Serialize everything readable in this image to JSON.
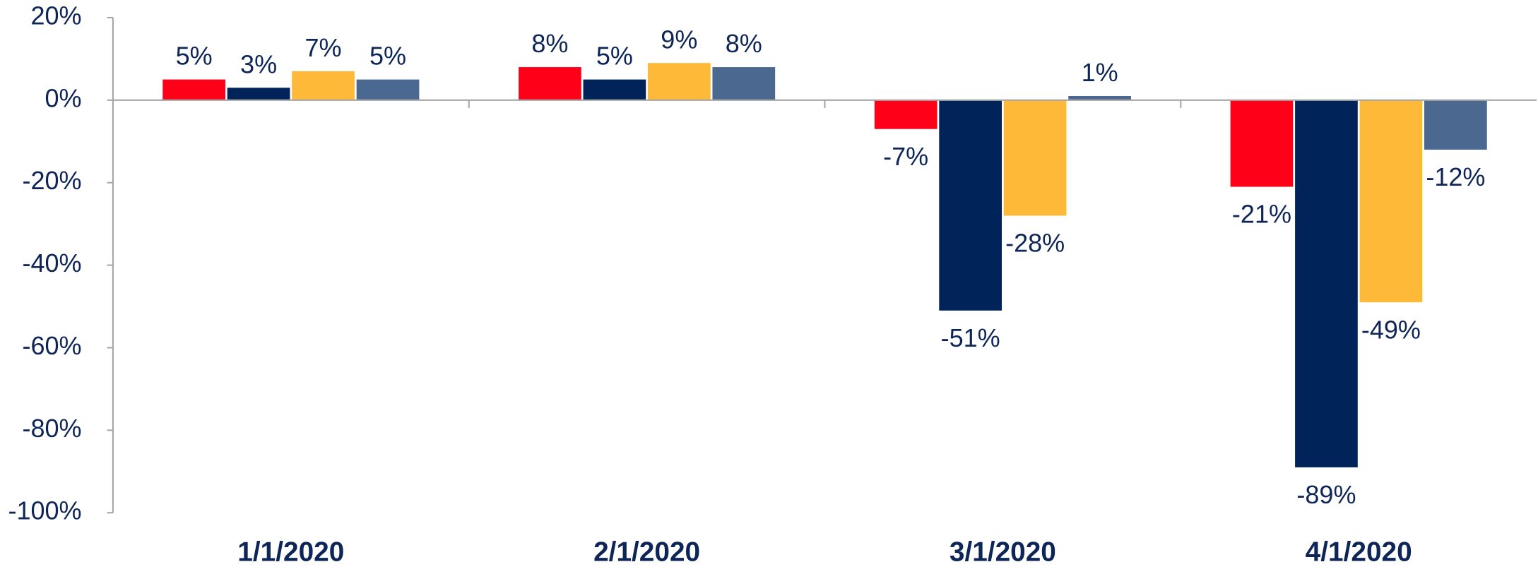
{
  "chart_data": {
    "type": "bar",
    "categories": [
      "1/1/2020",
      "2/1/2020",
      "3/1/2020",
      "4/1/2020"
    ],
    "series": [
      {
        "color": "#ff0019",
        "values": [
          5,
          8,
          -7,
          -21
        ],
        "value_labels": [
          "5%",
          "8%",
          "-7%",
          "-21%"
        ]
      },
      {
        "color": "#00245a",
        "values": [
          3,
          5,
          -51,
          -89
        ],
        "value_labels": [
          "3%",
          "5%",
          "-51%",
          "-89%"
        ]
      },
      {
        "color": "#ffb938",
        "values": [
          7,
          9,
          -28,
          -49
        ],
        "value_labels": [
          "7%",
          "9%",
          "-28%",
          "-49%"
        ]
      },
      {
        "color": "#4a6890",
        "values": [
          5,
          8,
          1,
          -12
        ],
        "value_labels": [
          "5%",
          "8%",
          "1%",
          "-12%"
        ]
      }
    ],
    "ylim": [
      -100,
      20
    ],
    "yticks": [
      {
        "value": -100,
        "label": "-100%"
      },
      {
        "value": -80,
        "label": "-80%"
      },
      {
        "value": -60,
        "label": "-60%"
      },
      {
        "value": -40,
        "label": "-40%"
      },
      {
        "value": -20,
        "label": "-20%"
      },
      {
        "value": 0,
        "label": "0%"
      },
      {
        "value": 20,
        "label": "20%"
      }
    ],
    "grid": false
  }
}
